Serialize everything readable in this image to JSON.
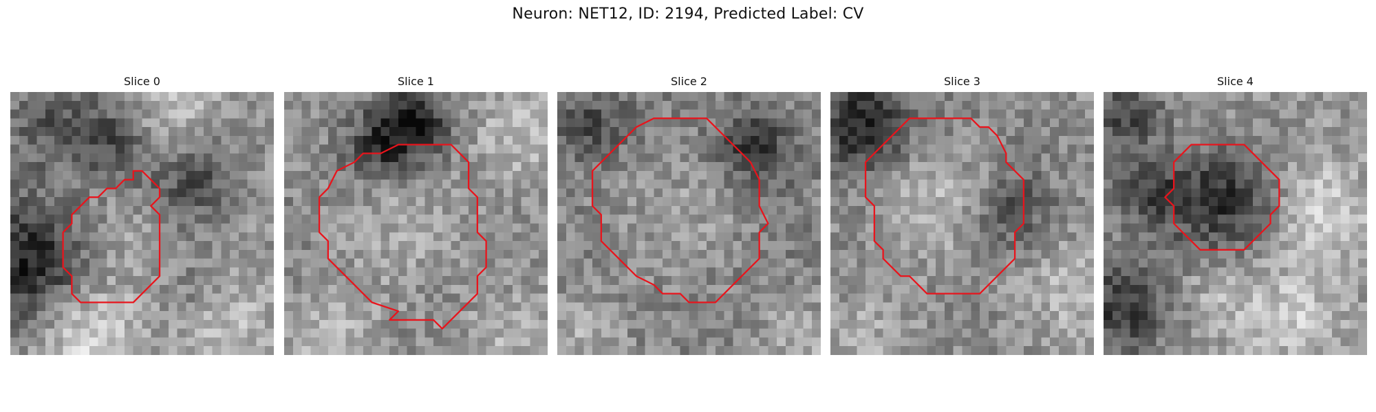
{
  "figure": {
    "title": "Neuron: NET12, ID: 2194, Predicted Label: CV"
  },
  "colors": {
    "contour": "#e8141c",
    "background": "#ffffff"
  },
  "panels": [
    {
      "title": "Slice 0",
      "contour_grid": [
        [
          14,
          9
        ],
        [
          15,
          9
        ],
        [
          16,
          10
        ],
        [
          17,
          11
        ],
        [
          17,
          12
        ],
        [
          16,
          13
        ],
        [
          17,
          14
        ],
        [
          17,
          21
        ],
        [
          14,
          24
        ],
        [
          8,
          24
        ],
        [
          7,
          23
        ],
        [
          7,
          21
        ],
        [
          6,
          20
        ],
        [
          6,
          16
        ],
        [
          7,
          15
        ],
        [
          7,
          14
        ],
        [
          8,
          13
        ],
        [
          9,
          12
        ],
        [
          10,
          12
        ],
        [
          11,
          11
        ],
        [
          12,
          11
        ],
        [
          13,
          10
        ],
        [
          14,
          10
        ]
      ],
      "blobs": [
        {
          "x": 1.5,
          "y": 19,
          "r": 5,
          "v": -120
        },
        {
          "x": 4,
          "y": 3,
          "r": 4,
          "v": -60
        },
        {
          "x": 11,
          "y": 5,
          "r": 3,
          "v": -70
        },
        {
          "x": 20,
          "y": 9,
          "r": 4,
          "v": -80
        },
        {
          "x": 18,
          "y": 3,
          "r": 4,
          "v": 50
        },
        {
          "x": 12,
          "y": 17,
          "r": 4,
          "v": 20
        },
        {
          "x": 8,
          "y": 27,
          "r": 4,
          "v": 70
        },
        {
          "x": 20,
          "y": 22,
          "r": 3,
          "v": -30
        },
        {
          "x": 24,
          "y": 26,
          "r": 4,
          "v": 40
        }
      ]
    },
    {
      "title": "Slice 1",
      "contour_grid": [
        [
          13,
          6
        ],
        [
          19,
          6
        ],
        [
          21,
          8
        ],
        [
          21,
          11
        ],
        [
          22,
          12
        ],
        [
          22,
          16
        ],
        [
          23,
          17
        ],
        [
          23,
          20
        ],
        [
          22,
          21
        ],
        [
          22,
          23
        ],
        [
          21,
          24
        ],
        [
          19,
          26
        ],
        [
          18,
          27
        ],
        [
          17,
          26
        ],
        [
          12,
          26
        ],
        [
          13,
          25
        ],
        [
          10,
          24
        ],
        [
          9,
          23
        ],
        [
          8,
          22
        ],
        [
          7,
          21
        ],
        [
          6,
          20
        ],
        [
          5,
          19
        ],
        [
          5,
          17
        ],
        [
          4,
          16
        ],
        [
          4,
          12
        ],
        [
          5,
          11
        ],
        [
          6,
          9
        ],
        [
          8,
          8
        ],
        [
          9,
          7
        ],
        [
          11,
          7
        ]
      ],
      "blobs": [
        {
          "x": 13.5,
          "y": 15.5,
          "r": 6.5,
          "v": 75
        },
        {
          "x": 14,
          "y": 16,
          "r": 10,
          "v": -55
        },
        {
          "x": 14,
          "y": 3,
          "r": 3,
          "v": -110
        },
        {
          "x": 10,
          "y": 6,
          "r": 2.5,
          "v": -70
        },
        {
          "x": 26,
          "y": 5,
          "r": 4,
          "v": 50
        },
        {
          "x": 5,
          "y": 27,
          "r": 4,
          "v": 45
        },
        {
          "x": 25,
          "y": 27,
          "r": 4,
          "v": 40
        }
      ]
    },
    {
      "title": "Slice 2",
      "contour_grid": [
        [
          11,
          3
        ],
        [
          17,
          3
        ],
        [
          19,
          5
        ],
        [
          20,
          6
        ],
        [
          21,
          7
        ],
        [
          22,
          8
        ],
        [
          23,
          10
        ],
        [
          23,
          13
        ],
        [
          24,
          15
        ],
        [
          23,
          16
        ],
        [
          23,
          19
        ],
        [
          22,
          20
        ],
        [
          20,
          22
        ],
        [
          19,
          23
        ],
        [
          18,
          24
        ],
        [
          15,
          24
        ],
        [
          14,
          23
        ],
        [
          12,
          23
        ],
        [
          11,
          22
        ],
        [
          9,
          21
        ],
        [
          8,
          20
        ],
        [
          7,
          19
        ],
        [
          6,
          18
        ],
        [
          5,
          17
        ],
        [
          5,
          14
        ],
        [
          4,
          13
        ],
        [
          4,
          9
        ],
        [
          5,
          8
        ],
        [
          6,
          7
        ],
        [
          7,
          6
        ],
        [
          8,
          5
        ],
        [
          9,
          4
        ]
      ],
      "blobs": [
        {
          "x": 13.5,
          "y": 13.5,
          "r": 7,
          "v": 70
        },
        {
          "x": 14,
          "y": 13.5,
          "r": 11,
          "v": -60
        },
        {
          "x": 22,
          "y": 6,
          "r": 3,
          "v": -80
        },
        {
          "x": 3,
          "y": 3,
          "r": 3,
          "v": -60
        },
        {
          "x": 27,
          "y": 27,
          "r": 3,
          "v": 40
        },
        {
          "x": 3,
          "y": 27,
          "r": 3,
          "v": 35
        }
      ]
    },
    {
      "title": "Slice 3",
      "contour_grid": [
        [
          9,
          3
        ],
        [
          16,
          3
        ],
        [
          17,
          4
        ],
        [
          18,
          4
        ],
        [
          19,
          5
        ],
        [
          20,
          7
        ],
        [
          20,
          8
        ],
        [
          21,
          9
        ],
        [
          22,
          10
        ],
        [
          22,
          15
        ],
        [
          21,
          16
        ],
        [
          21,
          19
        ],
        [
          20,
          20
        ],
        [
          19,
          21
        ],
        [
          17,
          23
        ],
        [
          11,
          23
        ],
        [
          10,
          22
        ],
        [
          9,
          21
        ],
        [
          8,
          21
        ],
        [
          7,
          20
        ],
        [
          6,
          19
        ],
        [
          6,
          18
        ],
        [
          5,
          17
        ],
        [
          5,
          13
        ],
        [
          4,
          12
        ],
        [
          4,
          8
        ],
        [
          5,
          7
        ],
        [
          6,
          6
        ],
        [
          7,
          5
        ],
        [
          8,
          4
        ]
      ],
      "blobs": [
        {
          "x": 11.5,
          "y": 12.5,
          "r": 6,
          "v": 75
        },
        {
          "x": 12,
          "y": 13,
          "r": 10,
          "v": -45
        },
        {
          "x": 20,
          "y": 13,
          "r": 3,
          "v": -60
        },
        {
          "x": 3,
          "y": 3,
          "r": 4,
          "v": -100
        },
        {
          "x": 26,
          "y": 22,
          "r": 4,
          "v": 40
        },
        {
          "x": 4,
          "y": 27,
          "r": 4,
          "v": 30
        }
      ]
    },
    {
      "title": "Slice 4",
      "contour_grid": [
        [
          10,
          6
        ],
        [
          16,
          6
        ],
        [
          17,
          7
        ],
        [
          18,
          8
        ],
        [
          19,
          9
        ],
        [
          20,
          10
        ],
        [
          20,
          13
        ],
        [
          19,
          14
        ],
        [
          19,
          15
        ],
        [
          17,
          17
        ],
        [
          16,
          18
        ],
        [
          11,
          18
        ],
        [
          10,
          17
        ],
        [
          9,
          16
        ],
        [
          8,
          15
        ],
        [
          8,
          13
        ],
        [
          7,
          12
        ],
        [
          8,
          11
        ],
        [
          8,
          8
        ],
        [
          9,
          7
        ]
      ],
      "blobs": [
        {
          "x": 13,
          "y": 12,
          "r": 4.5,
          "v": -100
        },
        {
          "x": 4.5,
          "y": 11,
          "r": 3,
          "v": -70
        },
        {
          "x": 2,
          "y": 2,
          "r": 3,
          "v": -80
        },
        {
          "x": 1.5,
          "y": 24,
          "r": 4,
          "v": -90
        },
        {
          "x": 24,
          "y": 13,
          "r": 4,
          "v": 60
        },
        {
          "x": 21,
          "y": 25,
          "r": 4,
          "v": 50
        },
        {
          "x": 13,
          "y": 22,
          "r": 3,
          "v": 35
        }
      ]
    }
  ]
}
